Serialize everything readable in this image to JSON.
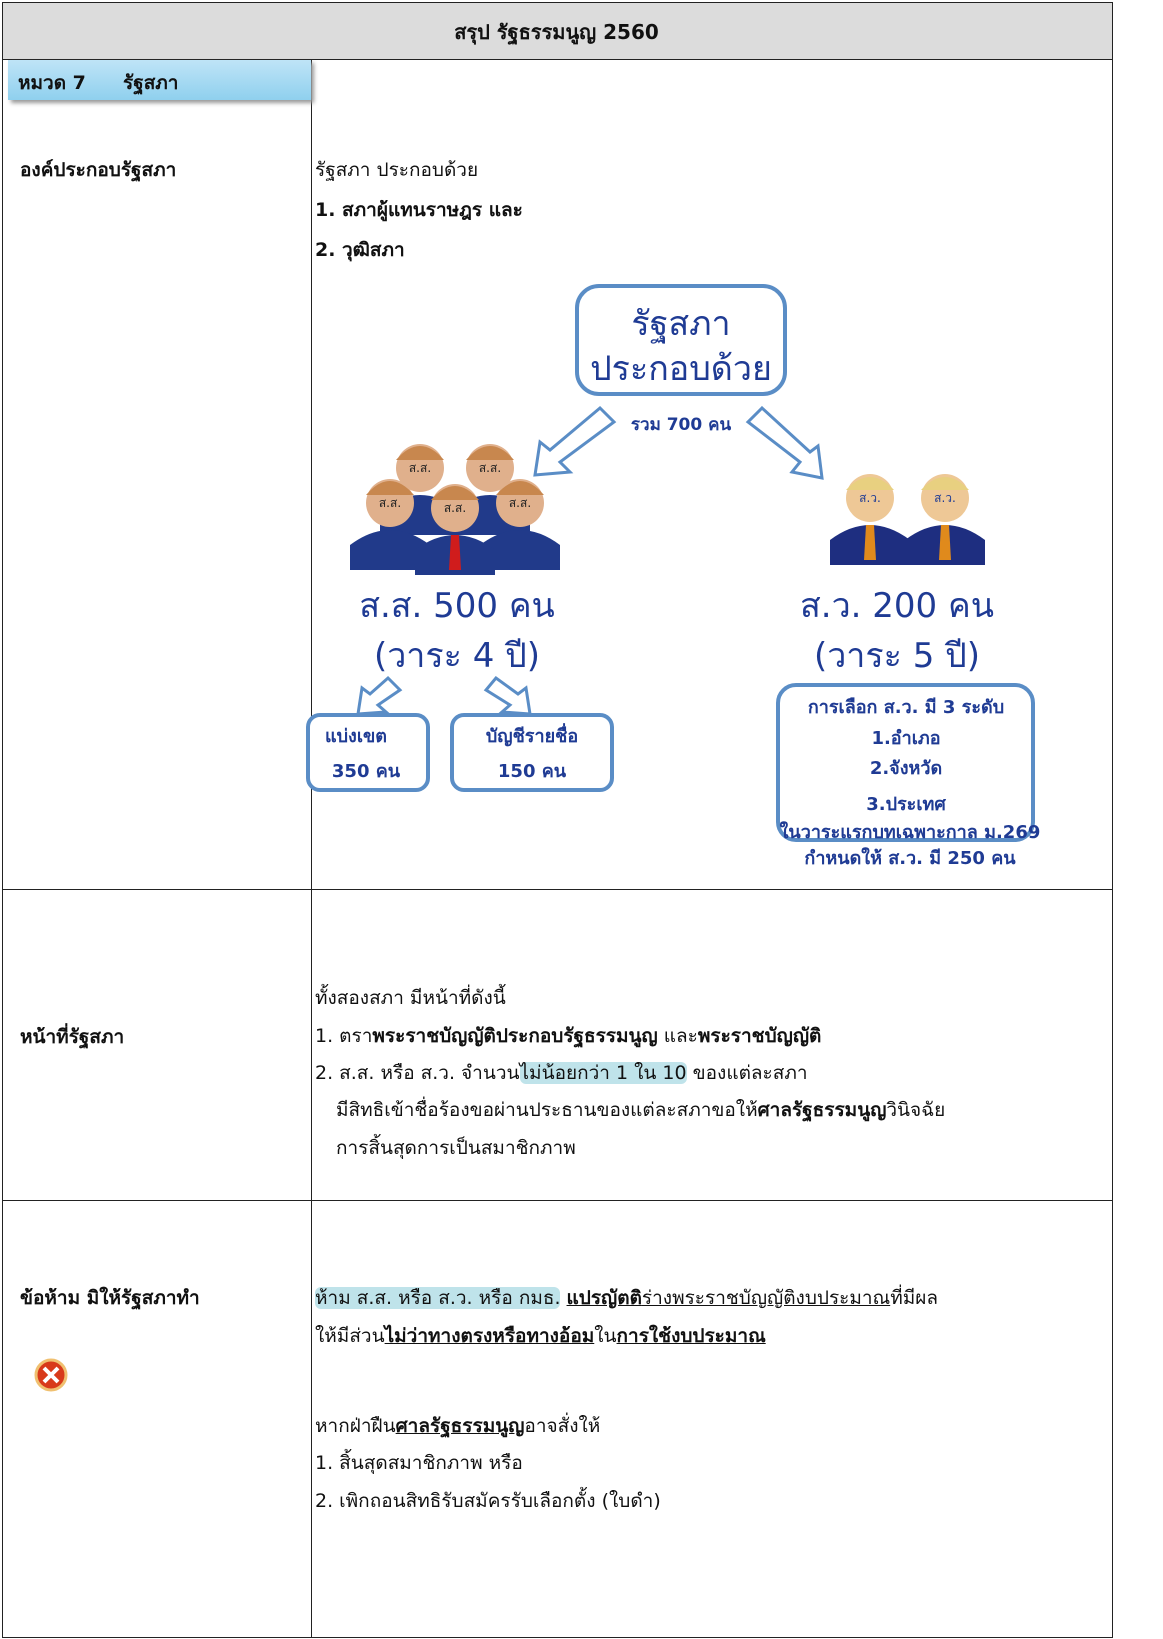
{
  "header": {
    "title": "สรุป รัฐธรรมนูญ 2560"
  },
  "section": {
    "number": "หมวด 7",
    "title": "รัฐสภา"
  },
  "rows": [
    {
      "label": "องค์ประกอบรัฐสภา",
      "lines": [
        "รัฐสภา ประกอบด้วย",
        "1. สภาผู้แทนราษฎร และ",
        "2. วุฒิสภา"
      ],
      "diagram": {
        "root": [
          "รัฐสภา",
          "ประกอบด้วย"
        ],
        "total": "รวม 700 คน",
        "mp_icons": [
          "ส.ส.",
          "ส.ส.",
          "ส.ส.",
          "ส.ส.",
          "ส.ส."
        ],
        "senator_icons": [
          "ส.ว.",
          "ส.ว."
        ],
        "mp": {
          "count": "ส.ส. 500 คน",
          "term": "(วาระ 4 ปี)",
          "branches": [
            [
              "แบ่งเขต",
              "350 คน"
            ],
            [
              "บัญชีรายชื่อ",
              "150 คน"
            ]
          ]
        },
        "senate": {
          "count": "ส.ว. 200 คน",
          "term": "(วาระ 5 ปี)",
          "selection": [
            "การเลือก ส.ว. มี 3 ระดับ",
            "1.อำเภอ",
            "2.จังหวัด",
            "3.ประเทศ"
          ],
          "note": [
            "ในวาระแรกบทเฉพาะกาล ม.269",
            "กำหนดให้ ส.ว. มี 250 คน"
          ]
        }
      }
    },
    {
      "label": "หน้าที่รัฐสภา",
      "lines": [
        [
          "ทั้งสองสภา มีหน้าที่ดังนี้"
        ],
        [
          "1. ตรา",
          "พระราชบัญญัติประกอบรัฐธรรมนูญ",
          " และ",
          "พระราชบัญญัติ"
        ],
        [
          "2. ส.ส. หรือ ส.ว. จำนวน",
          "ไม่น้อยกว่า 1 ใน 10",
          " ของแต่ละสภา"
        ],
        [
          "มีสิทธิเข้าชื่อร้องขอผ่านประธานของแต่ละสภาขอให้",
          "ศาลรัฐธรรมนูญ",
          "วินิจฉัย"
        ],
        [
          "การสิ้นสุดการเป็นสมาชิกภาพ"
        ]
      ]
    },
    {
      "label": "ข้อห้าม มิให้รัฐสภาทำ",
      "lines": [
        [
          "ห้าม ส.ส. หรือ ส.ว. หรือ กมธ.",
          "แปรญัตติ",
          "ร่างพระราชบัญญัติงบประมาณ",
          "ที่มีผล"
        ],
        [
          "ให้มีส่วน",
          "ไม่ว่าทางตรงหรือทางอ้อม",
          "ใน",
          "การใช้งบประมาณ"
        ],
        [
          "หากฝ่าฝืน",
          "ศาลรัฐธรรมนูญ",
          "อาจสั่งให้"
        ],
        [
          "1. สิ้นสุดสมาชิกภาพ หรือ"
        ],
        [
          "2. เพิกถอนสิทธิรับสมัครรับเลือกตั้ง (ใบดำ)"
        ]
      ]
    }
  ]
}
